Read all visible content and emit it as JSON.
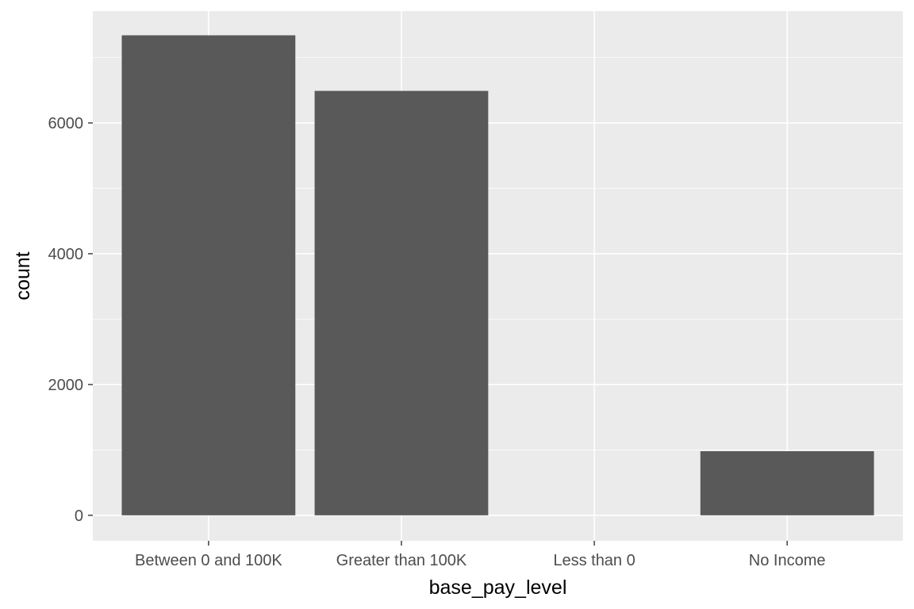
{
  "chart_data": {
    "type": "bar",
    "title": "",
    "xlabel": "base_pay_level",
    "ylabel": "count",
    "categories": [
      "Between 0 and 100K",
      "Greater than 100K",
      "Less than 0",
      "No Income"
    ],
    "values": [
      7340,
      6490,
      0,
      980
    ],
    "ylim": [
      -390,
      7710
    ],
    "yticks": [
      0,
      2000,
      4000,
      6000
    ],
    "ytick_labels": [
      "0",
      "2000",
      "4000",
      "6000"
    ],
    "grid": true,
    "legend": "none",
    "colors": {
      "panel_background": "#ebebeb",
      "grid_major": "#ffffff",
      "bar_fill": "#595959",
      "tick_text": "#4d4d4d",
      "axis_title": "#000000"
    }
  }
}
